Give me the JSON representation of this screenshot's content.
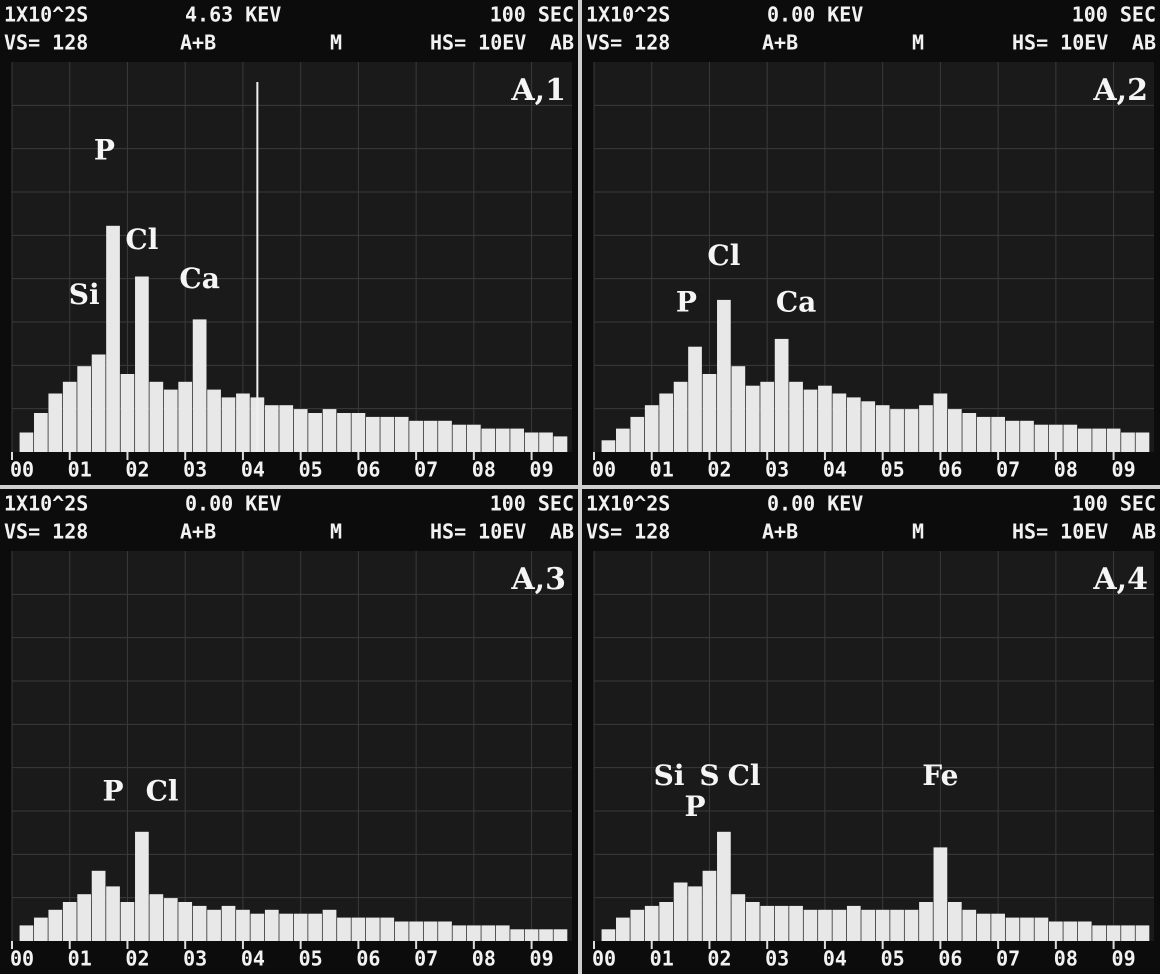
{
  "chart_data": [
    {
      "type": "bar",
      "header": [
        "1X10^2S",
        "4.63 KEV",
        "100 SEC"
      ],
      "header2": [
        "VS= 128",
        "A+B",
        "M",
        "HS= 10EV",
        "AB"
      ],
      "panel_label": "A,1",
      "x": [
        0.25,
        0.5,
        0.75,
        1.0,
        1.25,
        1.5,
        1.75,
        2.0,
        2.25,
        2.5,
        2.75,
        3.0,
        3.25,
        3.5,
        3.75,
        4.0,
        4.25,
        4.5,
        4.75,
        5.0,
        5.25,
        5.5,
        5.75,
        6.0,
        6.25,
        6.5,
        6.75,
        7.0,
        7.25,
        7.5,
        7.75,
        8.0,
        8.25,
        8.5,
        8.75,
        9.0,
        9.25,
        9.5
      ],
      "values": [
        5,
        10,
        15,
        18,
        22,
        25,
        58,
        20,
        45,
        18,
        16,
        18,
        34,
        16,
        14,
        15,
        14,
        12,
        12,
        11,
        10,
        11,
        10,
        10,
        9,
        9,
        9,
        8,
        8,
        8,
        7,
        7,
        6,
        6,
        6,
        5,
        5,
        4
      ],
      "cursor": 4.25,
      "annotations": [
        {
          "text": "Si",
          "x": 1.25,
          "y": 38
        },
        {
          "text": "P",
          "x": 1.6,
          "y": 75
        },
        {
          "text": "Cl",
          "x": 2.25,
          "y": 52
        },
        {
          "text": "Ca",
          "x": 3.25,
          "y": 42
        }
      ],
      "xlim": [
        0,
        9.7
      ],
      "ylim": [
        0,
        100
      ],
      "xticks": [
        {
          "value": 0,
          "label": "00"
        },
        {
          "value": 1,
          "label": "01"
        },
        {
          "value": 2,
          "label": "02"
        },
        {
          "value": 3,
          "label": "03"
        },
        {
          "value": 4,
          "label": "04"
        },
        {
          "value": 5,
          "label": "05"
        },
        {
          "value": 6,
          "label": "06"
        },
        {
          "value": 7,
          "label": "07"
        },
        {
          "value": 8,
          "label": "08"
        },
        {
          "value": 9,
          "label": "09"
        }
      ],
      "grid": true,
      "color": "#e8e8e8"
    },
    {
      "type": "bar",
      "header": [
        "1X10^2S",
        "0.00 KEV",
        "100 SEC"
      ],
      "header2": [
        "VS= 128",
        "A+B",
        "M",
        "HS= 10EV",
        "AB"
      ],
      "panel_label": "A,2",
      "x": [
        0.25,
        0.5,
        0.75,
        1.0,
        1.25,
        1.5,
        1.75,
        2.0,
        2.25,
        2.5,
        2.75,
        3.0,
        3.25,
        3.5,
        3.75,
        4.0,
        4.25,
        4.5,
        4.75,
        5.0,
        5.25,
        5.5,
        5.75,
        6.0,
        6.25,
        6.5,
        6.75,
        7.0,
        7.25,
        7.5,
        7.75,
        8.0,
        8.25,
        8.5,
        8.75,
        9.0,
        9.25,
        9.5
      ],
      "values": [
        3,
        6,
        9,
        12,
        15,
        18,
        27,
        20,
        39,
        22,
        17,
        18,
        29,
        18,
        16,
        17,
        15,
        14,
        13,
        12,
        11,
        11,
        12,
        15,
        11,
        10,
        9,
        9,
        8,
        8,
        7,
        7,
        7,
        6,
        6,
        6,
        5,
        5
      ],
      "annotations": [
        {
          "text": "P",
          "x": 1.6,
          "y": 36
        },
        {
          "text": "Cl",
          "x": 2.25,
          "y": 48
        },
        {
          "text": "Ca",
          "x": 3.5,
          "y": 36
        }
      ],
      "xlim": [
        0,
        9.7
      ],
      "ylim": [
        0,
        100
      ],
      "xticks": [
        {
          "value": 0,
          "label": "00"
        },
        {
          "value": 1,
          "label": "01"
        },
        {
          "value": 2,
          "label": "02"
        },
        {
          "value": 3,
          "label": "03"
        },
        {
          "value": 4,
          "label": "04"
        },
        {
          "value": 5,
          "label": "05"
        },
        {
          "value": 6,
          "label": "06"
        },
        {
          "value": 7,
          "label": "07"
        },
        {
          "value": 8,
          "label": "08"
        },
        {
          "value": 9,
          "label": "09"
        }
      ],
      "grid": true,
      "color": "#e8e8e8"
    },
    {
      "type": "bar",
      "header": [
        "1X10^2S",
        "0.00 KEV",
        "100 SEC"
      ],
      "header2": [
        "VS= 128",
        "A+B",
        "M",
        "HS= 10EV",
        "AB"
      ],
      "panel_label": "A,3",
      "x": [
        0.25,
        0.5,
        0.75,
        1.0,
        1.25,
        1.5,
        1.75,
        2.0,
        2.25,
        2.5,
        2.75,
        3.0,
        3.25,
        3.5,
        3.75,
        4.0,
        4.25,
        4.5,
        4.75,
        5.0,
        5.25,
        5.5,
        5.75,
        6.0,
        6.25,
        6.5,
        6.75,
        7.0,
        7.25,
        7.5,
        7.75,
        8.0,
        8.25,
        8.5,
        8.75,
        9.0,
        9.25,
        9.5
      ],
      "values": [
        4,
        6,
        8,
        10,
        12,
        18,
        14,
        10,
        28,
        12,
        11,
        10,
        9,
        8,
        9,
        8,
        7,
        8,
        7,
        7,
        7,
        8,
        6,
        6,
        6,
        6,
        5,
        5,
        5,
        5,
        4,
        4,
        4,
        4,
        3,
        3,
        3,
        3
      ],
      "annotations": [
        {
          "text": "P",
          "x": 1.75,
          "y": 36
        },
        {
          "text": "Cl",
          "x": 2.6,
          "y": 36
        }
      ],
      "xlim": [
        0,
        9.7
      ],
      "ylim": [
        0,
        100
      ],
      "xticks": [
        {
          "value": 0,
          "label": "00"
        },
        {
          "value": 1,
          "label": "01"
        },
        {
          "value": 2,
          "label": "02"
        },
        {
          "value": 3,
          "label": "03"
        },
        {
          "value": 4,
          "label": "04"
        },
        {
          "value": 5,
          "label": "05"
        },
        {
          "value": 6,
          "label": "06"
        },
        {
          "value": 7,
          "label": "07"
        },
        {
          "value": 8,
          "label": "08"
        },
        {
          "value": 9,
          "label": "09"
        }
      ],
      "grid": true,
      "color": "#e8e8e8"
    },
    {
      "type": "bar",
      "header": [
        "1X10^2S",
        "0.00 KEV",
        "100 SEC"
      ],
      "header2": [
        "VS= 128",
        "A+B",
        "M",
        "HS= 10EV",
        "AB"
      ],
      "panel_label": "A,4",
      "x": [
        0.25,
        0.5,
        0.75,
        1.0,
        1.25,
        1.5,
        1.75,
        2.0,
        2.25,
        2.5,
        2.75,
        3.0,
        3.25,
        3.5,
        3.75,
        4.0,
        4.25,
        4.5,
        4.75,
        5.0,
        5.25,
        5.5,
        5.75,
        6.0,
        6.25,
        6.5,
        6.75,
        7.0,
        7.25,
        7.5,
        7.75,
        8.0,
        8.25,
        8.5,
        8.75,
        9.0,
        9.25,
        9.5
      ],
      "values": [
        3,
        6,
        8,
        9,
        10,
        15,
        14,
        18,
        28,
        12,
        10,
        9,
        9,
        9,
        8,
        8,
        8,
        9,
        8,
        8,
        8,
        8,
        10,
        24,
        10,
        8,
        7,
        7,
        6,
        6,
        6,
        5,
        5,
        5,
        4,
        4,
        4,
        4
      ],
      "annotations": [
        {
          "text": "Si",
          "x": 1.3,
          "y": 40
        },
        {
          "text": "P",
          "x": 1.75,
          "y": 32
        },
        {
          "text": "S",
          "x": 2.0,
          "y": 40
        },
        {
          "text": "Cl",
          "x": 2.6,
          "y": 40
        },
        {
          "text": "Fe",
          "x": 6.0,
          "y": 40
        }
      ],
      "xlim": [
        0,
        9.7
      ],
      "ylim": [
        0,
        100
      ],
      "xticks": [
        {
          "value": 0,
          "label": "00"
        },
        {
          "value": 1,
          "label": "01"
        },
        {
          "value": 2,
          "label": "02"
        },
        {
          "value": 3,
          "label": "03"
        },
        {
          "value": 4,
          "label": "04"
        },
        {
          "value": 5,
          "label": "05"
        },
        {
          "value": 6,
          "label": "06"
        },
        {
          "value": 7,
          "label": "07"
        },
        {
          "value": 8,
          "label": "08"
        },
        {
          "value": 9,
          "label": "09"
        }
      ],
      "grid": true,
      "color": "#e8e8e8"
    }
  ]
}
